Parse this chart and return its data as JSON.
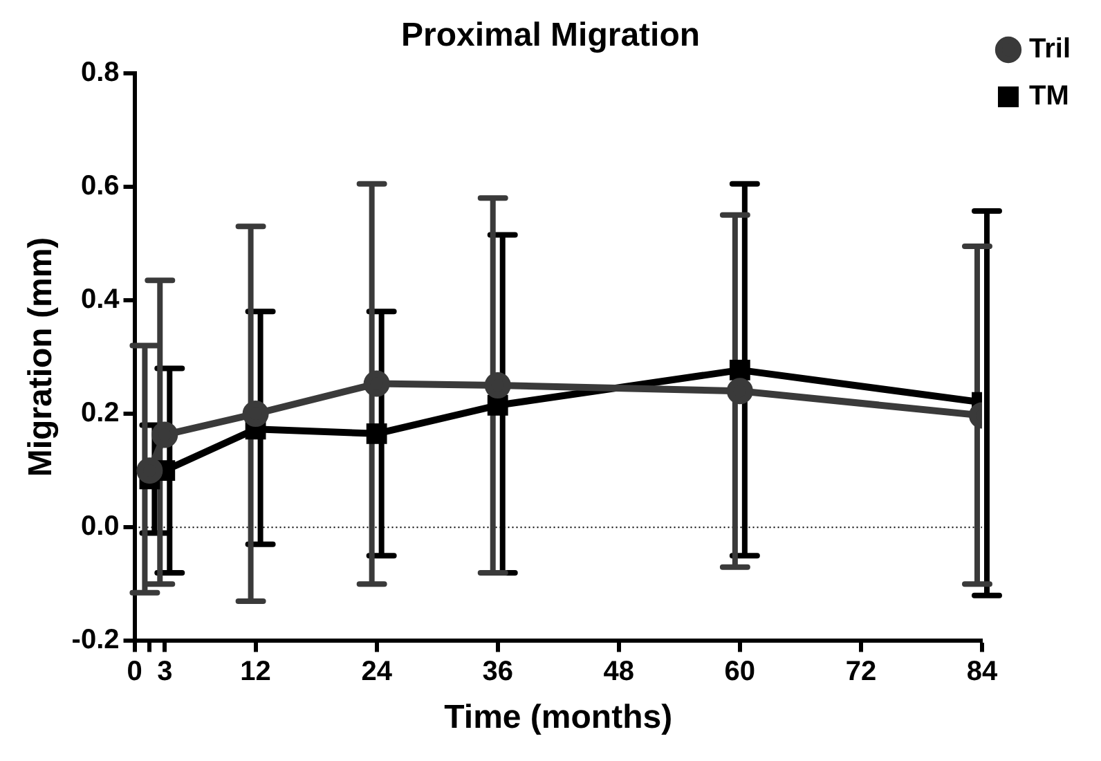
{
  "chart_data": {
    "type": "line",
    "title": "Proximal Migration",
    "xlabel": "Time (months)",
    "ylabel": "Migration (mm)",
    "x": [
      1.5,
      3,
      12,
      24,
      36,
      60,
      84
    ],
    "series": [
      {
        "name": "TM",
        "color": "#000000",
        "marker": "square",
        "values": [
          0.085,
          0.1,
          0.173,
          0.165,
          0.215,
          0.277,
          0.22
        ],
        "errors": [
          [
            -0.01,
            0.18
          ],
          [
            -0.08,
            0.28
          ],
          [
            -0.03,
            0.38
          ],
          [
            -0.05,
            0.38
          ],
          [
            -0.08,
            0.515
          ],
          [
            -0.05,
            0.605
          ],
          [
            -0.12,
            0.557
          ]
        ]
      },
      {
        "name": "Tril",
        "color": "#3a3a3a",
        "marker": "circle",
        "values": [
          0.1,
          0.163,
          0.2,
          0.253,
          0.25,
          0.24,
          0.197
        ],
        "errors": [
          [
            -0.115,
            0.32
          ],
          [
            -0.1,
            0.435
          ],
          [
            -0.13,
            0.53
          ],
          [
            -0.1,
            0.605
          ],
          [
            -0.08,
            0.58
          ],
          [
            -0.07,
            0.55
          ],
          [
            -0.1,
            0.495
          ]
        ]
      }
    ],
    "xlim": [
      0,
      84
    ],
    "xticks": [
      0,
      {
        "value": 1.5,
        "label": null
      },
      3,
      12,
      24,
      36,
      48,
      60,
      72,
      84
    ],
    "ylim": [
      -0.2,
      0.8
    ],
    "yticks": [
      -0.2,
      {
        "value": 0,
        "label": "0.0"
      },
      0.2,
      0.4,
      0.6,
      0.8
    ],
    "ref_lines": [
      {
        "axis": "y",
        "value": 0,
        "color": "#000000",
        "line_style": "dotted"
      }
    ],
    "grid": false,
    "legend": "top right",
    "line_style": "solid"
  }
}
